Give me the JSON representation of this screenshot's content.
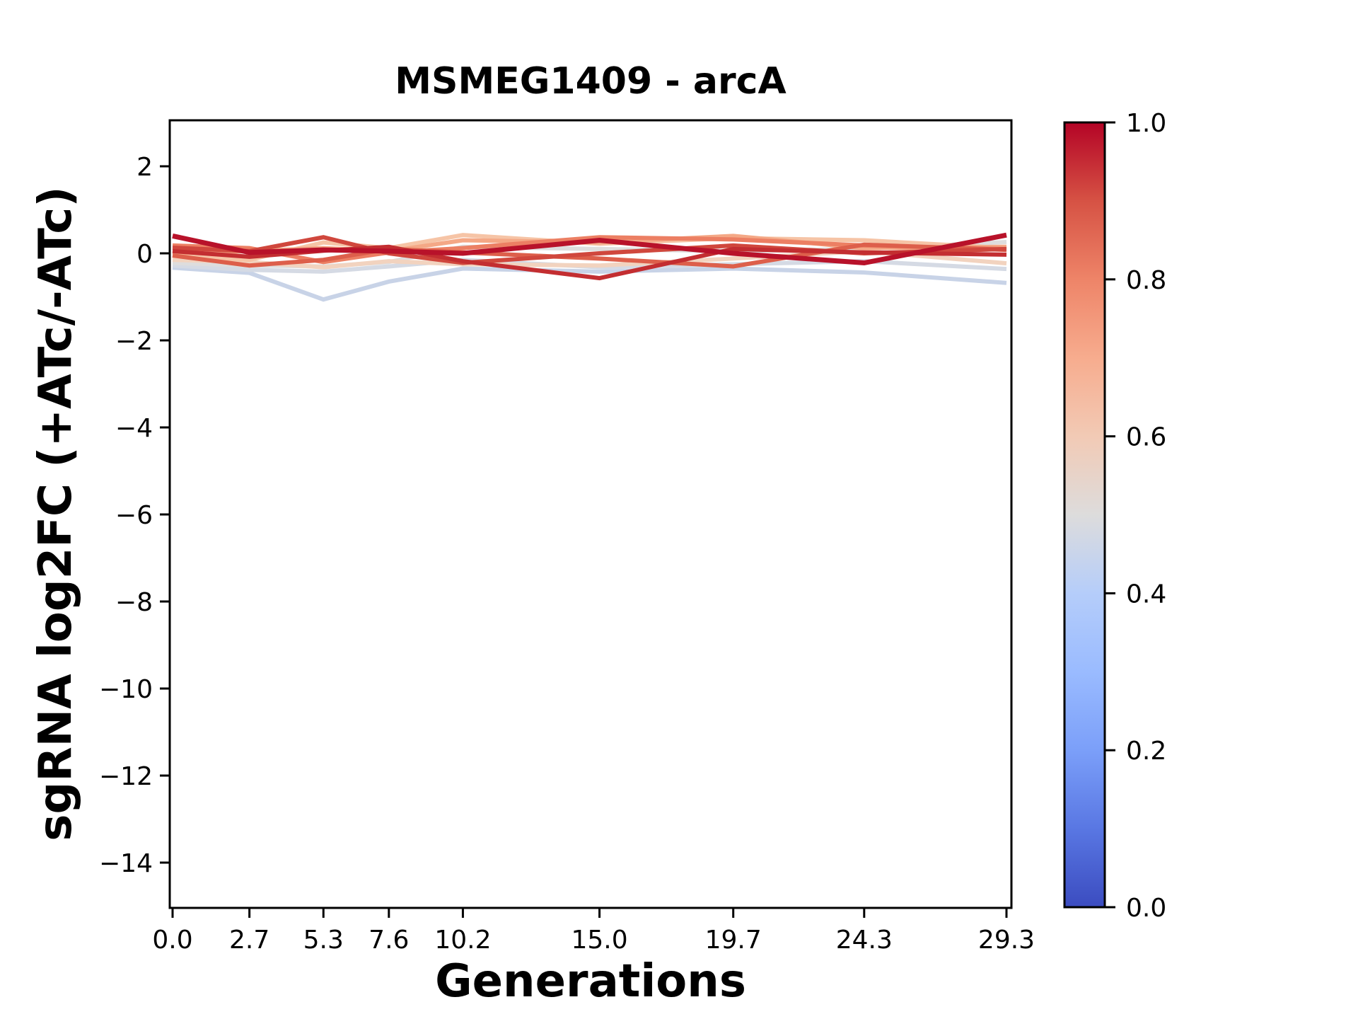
{
  "chart_data": {
    "type": "line",
    "title": "MSMEG1409 - arcA",
    "xlabel": "Generations",
    "ylabel": "sgRNA log2FC (+ATc/-ATc)",
    "x": [
      0.0,
      2.7,
      5.3,
      7.6,
      10.2,
      15.0,
      19.7,
      24.3,
      29.3
    ],
    "x_tick_labels": [
      "0.0",
      "2.7",
      "5.3",
      "7.6",
      "10.2",
      "15.0",
      "19.7",
      "24.3",
      "29.3"
    ],
    "y_tick_values": [
      2,
      0,
      -2,
      -4,
      -6,
      -8,
      -10,
      -12,
      -14
    ],
    "y_tick_labels": [
      "2",
      "0",
      "−2",
      "−4",
      "−6",
      "−8",
      "−10",
      "−12",
      "−14"
    ],
    "xlim": [
      -0.15,
      29.5
    ],
    "ylim": [
      -15.05,
      3.06
    ],
    "grid": false,
    "legend": "none",
    "axis_color": "#000000",
    "background_color": "#ffffff",
    "series": [
      {
        "colormap_value": 0.4,
        "color": "#c8d3e7",
        "values": [
          -0.33,
          -0.45,
          -1.06,
          -0.65,
          -0.35,
          -0.42,
          -0.35,
          -0.44,
          -0.68
        ]
      },
      {
        "colormap_value": 0.45,
        "color": "#d5dae4",
        "values": [
          -0.28,
          -0.38,
          -0.42,
          -0.3,
          -0.15,
          -0.32,
          -0.25,
          -0.18,
          -0.36
        ]
      },
      {
        "colormap_value": 0.5,
        "color": "#dedddd",
        "values": [
          -0.22,
          -0.28,
          -0.3,
          -0.2,
          0.15,
          0.1,
          0.05,
          0.1,
          0.26
        ]
      },
      {
        "colormap_value": 0.57,
        "color": "#f2d3bf",
        "values": [
          -0.15,
          -0.2,
          -0.32,
          -0.18,
          -0.25,
          -0.28,
          -0.12,
          0.05,
          -0.23
        ]
      },
      {
        "colormap_value": 0.63,
        "color": "#f6c4a6",
        "values": [
          -0.05,
          -0.15,
          0.25,
          0.12,
          0.42,
          0.22,
          0.35,
          0.3,
          0.12
        ]
      },
      {
        "colormap_value": 0.72,
        "color": "#f4a886",
        "values": [
          0.0,
          0.05,
          0.12,
          0.05,
          0.3,
          0.25,
          0.4,
          0.12,
          0.15
        ]
      },
      {
        "colormap_value": 0.8,
        "color": "#ec7f63",
        "values": [
          0.18,
          0.12,
          -0.2,
          0.02,
          0.12,
          0.37,
          0.32,
          0.18,
          0.1
        ]
      },
      {
        "colormap_value": 0.85,
        "color": "#dd5f4b",
        "values": [
          -0.05,
          -0.28,
          -0.15,
          0.1,
          0.02,
          -0.12,
          -0.3,
          0.2,
          0.08
        ]
      },
      {
        "colormap_value": 0.9,
        "color": "#d0473d",
        "values": [
          0.13,
          0.05,
          0.37,
          0.0,
          -0.22,
          0.0,
          0.18,
          0.0,
          0.1
        ]
      },
      {
        "colormap_value": 0.95,
        "color": "#c32e31",
        "values": [
          0.05,
          -0.08,
          0.06,
          0.15,
          -0.18,
          -0.57,
          0.1,
          0.02,
          -0.03
        ]
      },
      {
        "colormap_value": 1.0,
        "color": "#b8122a",
        "values": [
          0.4,
          0.02,
          0.08,
          0.05,
          0.0,
          0.3,
          0.0,
          -0.22,
          0.42
        ]
      }
    ],
    "colorbar": {
      "min": 0.0,
      "max": 1.0,
      "tick_values": [
        0.0,
        0.2,
        0.4,
        0.6,
        0.8,
        1.0
      ],
      "tick_labels": [
        "0.0",
        "0.2",
        "0.4",
        "0.6",
        "0.8",
        "1.0"
      ],
      "gradient_top_to_bottom": [
        {
          "offset": 0.0,
          "color": "#b40426"
        },
        {
          "offset": 0.1,
          "color": "#d65244"
        },
        {
          "offset": 0.2,
          "color": "#ee8468"
        },
        {
          "offset": 0.3,
          "color": "#f7ac8e"
        },
        {
          "offset": 0.4,
          "color": "#f2cab5"
        },
        {
          "offset": 0.5,
          "color": "#dddcdc"
        },
        {
          "offset": 0.6,
          "color": "#b5cdfa"
        },
        {
          "offset": 0.7,
          "color": "#9abbff"
        },
        {
          "offset": 0.8,
          "color": "#7b9ff9"
        },
        {
          "offset": 0.9,
          "color": "#5977e3"
        },
        {
          "offset": 1.0,
          "color": "#3b4cc0"
        }
      ]
    }
  }
}
